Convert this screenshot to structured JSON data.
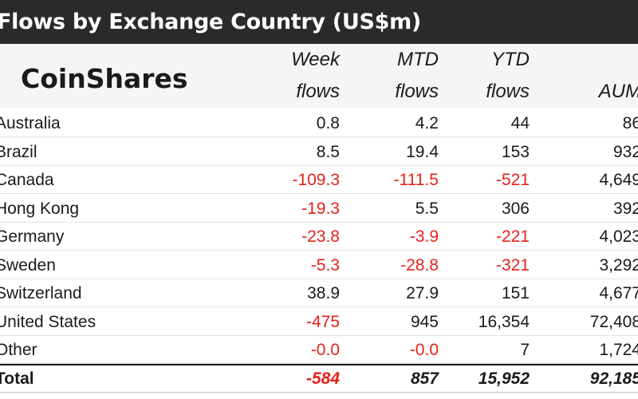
{
  "title": "Flows by Exchange Country (US$m)",
  "logo": "CoinShares",
  "columns": [
    {
      "line1": "Week",
      "line2": "flows"
    },
    {
      "line1": "MTD",
      "line2": "flows"
    },
    {
      "line1": "YTD",
      "line2": "flows"
    },
    {
      "line1": "",
      "line2": "AUM"
    }
  ],
  "rows": [
    {
      "country": "Australia",
      "week": "0.8",
      "mtd": "4.2",
      "ytd": "44",
      "aum": "86"
    },
    {
      "country": "Brazil",
      "week": "8.5",
      "mtd": "19.4",
      "ytd": "153",
      "aum": "932"
    },
    {
      "country": "Canada",
      "week": "-109.3",
      "mtd": "-111.5",
      "ytd": "-521",
      "aum": "4,649"
    },
    {
      "country": "Hong Kong",
      "week": "-19.3",
      "mtd": "5.5",
      "ytd": "306",
      "aum": "392"
    },
    {
      "country": "Germany",
      "week": "-23.8",
      "mtd": "-3.9",
      "ytd": "-221",
      "aum": "4,023"
    },
    {
      "country": "Sweden",
      "week": "-5.3",
      "mtd": "-28.8",
      "ytd": "-321",
      "aum": "3,292"
    },
    {
      "country": "Switzerland",
      "week": "38.9",
      "mtd": "27.9",
      "ytd": "151",
      "aum": "4,677"
    },
    {
      "country": "United States",
      "week": "-475",
      "mtd": "945",
      "ytd": "16,354",
      "aum": "72,408"
    },
    {
      "country": "Other",
      "week": "-0.0",
      "mtd": "-0.0",
      "ytd": "7",
      "aum": "1,724"
    }
  ],
  "total": {
    "label": "Total",
    "week": "-584",
    "mtd": "857",
    "ytd": "15,952",
    "aum": "92,185"
  },
  "colors": {
    "title_bg": "#2a2a2a",
    "header_bg": "#f5f5f5",
    "negative": "#e2231a"
  }
}
